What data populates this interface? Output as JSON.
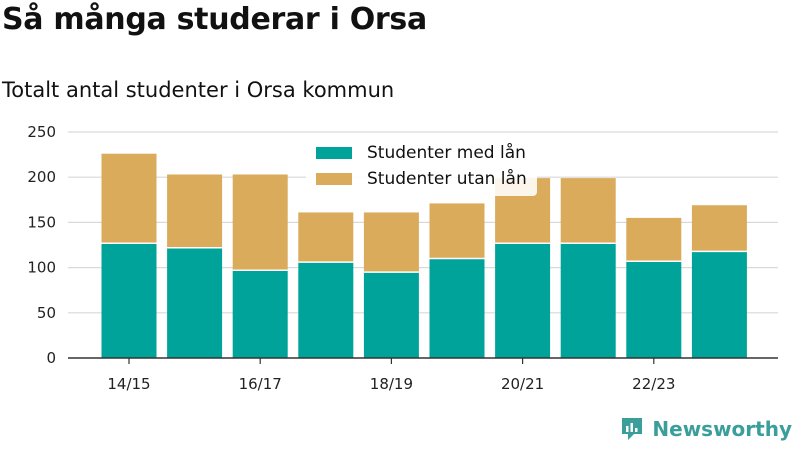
{
  "title": "Så många studerar i Orsa",
  "subtitle": "Totalt antal studenter i Orsa kommun",
  "brand": "Newsworthy",
  "colors": {
    "with_loan": "#00a39a",
    "without_loan": "#d9ab5b",
    "grid": "#d9d9d9",
    "axis": "#333333"
  },
  "chart_data": {
    "type": "bar",
    "stacked": true,
    "categories": [
      "14/15",
      "15/16",
      "16/17",
      "17/18",
      "18/19",
      "19/20",
      "20/21",
      "21/22",
      "22/23",
      "23/24"
    ],
    "x_tick_labels": [
      "14/15",
      "16/17",
      "18/19",
      "20/21",
      "22/23"
    ],
    "series": [
      {
        "name": "Studenter med lån",
        "values": [
          127,
          122,
          97,
          106,
          95,
          110,
          127,
          127,
          107,
          118
        ]
      },
      {
        "name": "Studenter utan lån",
        "values": [
          99,
          81,
          106,
          55,
          66,
          61,
          72,
          72,
          48,
          51
        ]
      }
    ],
    "ylim": [
      0,
      250
    ],
    "yticks": [
      0,
      50,
      100,
      150,
      200,
      250
    ],
    "grid": true,
    "legend_position": "top-center"
  }
}
